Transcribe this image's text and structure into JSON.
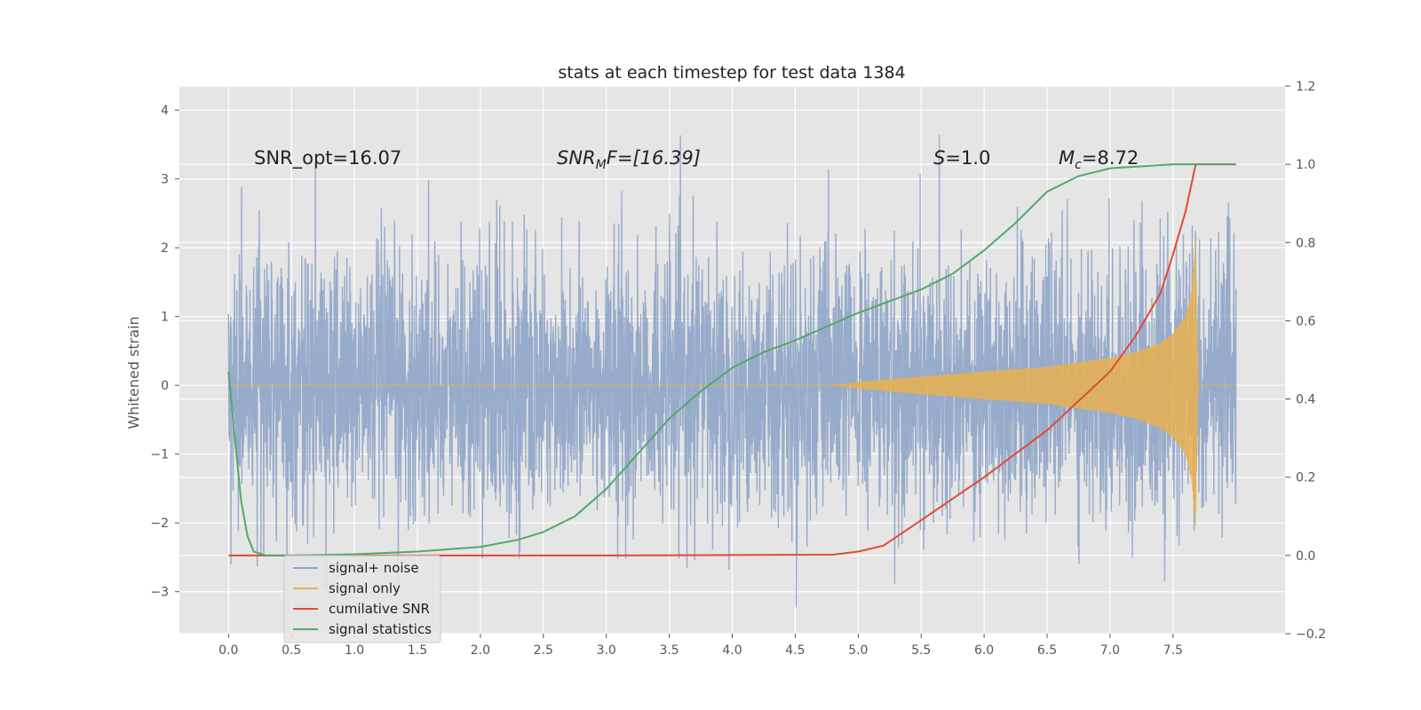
{
  "chart_data": {
    "type": "line",
    "title": "stats at each timestep for test data 1384",
    "ylabel": "Whitened strain",
    "xlim": [
      -0.39,
      8.39
    ],
    "ylim": [
      -3.61,
      4.35
    ],
    "y2lim": [
      -0.2,
      1.2
    ],
    "xticks": [
      0.0,
      0.5,
      1.0,
      1.5,
      2.0,
      2.5,
      3.0,
      3.5,
      4.0,
      4.5,
      5.0,
      5.5,
      6.0,
      6.5,
      7.0,
      7.5
    ],
    "xtick_labels": [
      "0.0",
      "0.5",
      "1.0",
      "1.5",
      "2.0",
      "2.5",
      "3.0",
      "3.5",
      "4.0",
      "4.5",
      "5.0",
      "5.5",
      "6.0",
      "6.5",
      "7.0",
      "7.5"
    ],
    "yticks": [
      -3,
      -2,
      -1,
      0,
      1,
      2,
      3,
      4
    ],
    "ytick_labels": [
      "−3",
      "−2",
      "−1",
      "0",
      "1",
      "2",
      "3",
      "4"
    ],
    "y2ticks": [
      -0.2,
      0.0,
      0.2,
      0.4,
      0.6,
      0.8,
      1.0,
      1.2
    ],
    "y2tick_labels": [
      "−0.2",
      "0.0",
      "0.2",
      "0.4",
      "0.6",
      "0.8",
      "1.0",
      "1.2"
    ],
    "grid": true,
    "legend_position": "lower-left",
    "annotations": {
      "snr_opt": "SNR_opt=16.07",
      "snr_mf_main": "SNR",
      "snr_mf_sub": "M",
      "snr_mf_rest": "F=[16.39]",
      "s_main": "S",
      "s_rest": "=1.0",
      "mc_main": "M",
      "mc_sub": "c",
      "mc_rest": "=8.72"
    },
    "series": [
      {
        "name": "signal+ noise",
        "axis": "left",
        "color": "#8ea4c8",
        "description_free": true,
        "t_start": 0.0,
        "t_end": 8.0,
        "abs_max": 4.0,
        "abs_min": -3.3
      },
      {
        "name": "signal only",
        "axis": "left",
        "color": "#e8b050",
        "t_start": 0.0,
        "t_end": 8.0,
        "envelope": {
          "t": [
            0.0,
            4.8,
            5.0,
            5.5,
            6.0,
            6.5,
            7.0,
            7.2,
            7.4,
            7.5,
            7.6,
            7.65,
            7.68,
            7.7,
            8.0
          ],
          "amp": [
            0.0,
            0.0,
            0.05,
            0.13,
            0.2,
            0.27,
            0.4,
            0.48,
            0.62,
            0.75,
            1.0,
            1.4,
            2.1,
            0.0,
            0.0
          ]
        }
      },
      {
        "name": "cumilative SNR",
        "axis": "right",
        "color": "#e24a33",
        "x": [
          0.0,
          1.0,
          2.0,
          3.0,
          4.0,
          4.8,
          5.0,
          5.2,
          5.5,
          6.0,
          6.5,
          7.0,
          7.2,
          7.4,
          7.5,
          7.6,
          7.68,
          8.0
        ],
        "values": [
          0.0,
          0.0,
          0.0,
          0.0,
          0.001,
          0.002,
          0.01,
          0.025,
          0.09,
          0.2,
          0.32,
          0.47,
          0.56,
          0.67,
          0.77,
          0.88,
          1.0,
          1.0
        ]
      },
      {
        "name": "signal statistics",
        "axis": "right",
        "color": "#55a868",
        "x": [
          0.0,
          0.05,
          0.1,
          0.15,
          0.2,
          0.3,
          0.5,
          1.0,
          1.5,
          2.0,
          2.3,
          2.5,
          2.75,
          3.0,
          3.25,
          3.5,
          3.75,
          4.0,
          4.25,
          4.5,
          5.0,
          5.5,
          5.75,
          6.0,
          6.25,
          6.5,
          6.75,
          7.0,
          7.5,
          8.0
        ],
        "values": [
          0.47,
          0.3,
          0.14,
          0.05,
          0.01,
          0.0,
          0.0,
          0.003,
          0.01,
          0.022,
          0.04,
          0.06,
          0.1,
          0.17,
          0.26,
          0.35,
          0.42,
          0.48,
          0.52,
          0.55,
          0.62,
          0.68,
          0.72,
          0.78,
          0.85,
          0.93,
          0.97,
          0.99,
          1.0,
          1.0
        ]
      }
    ]
  }
}
